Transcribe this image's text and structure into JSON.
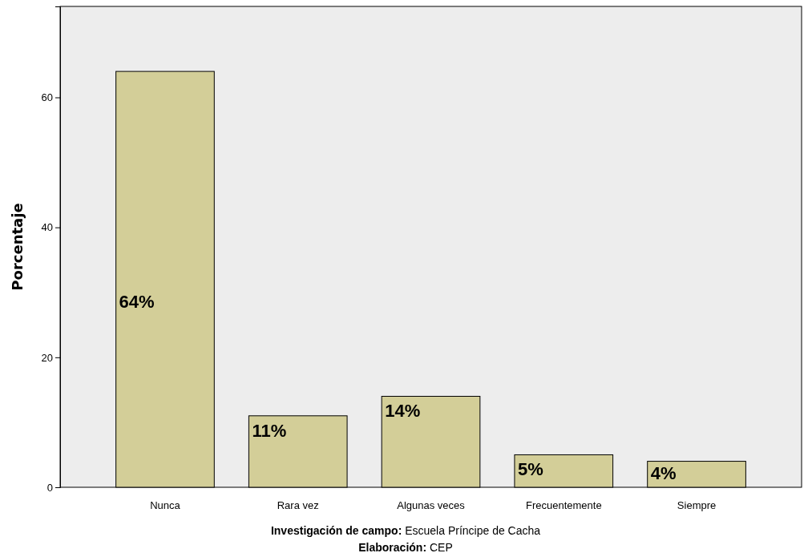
{
  "chart_data": {
    "type": "bar",
    "ylabel": "Porcentaje",
    "categories": [
      "Nunca",
      "Rara vez",
      "Algunas veces",
      "Frecuentemente",
      "Siempre"
    ],
    "values": [
      64,
      11,
      14,
      5,
      4
    ],
    "value_labels": [
      "64%",
      "11%",
      "14%",
      "5%",
      "4%"
    ],
    "color": "#d3ce98",
    "ylim": [
      0,
      74
    ],
    "yticks": [
      0,
      20,
      40,
      60
    ],
    "grid": false,
    "annotations": [
      "Investigación de campo: Escuela Príncipe de Cacha",
      "Elaboración: CEP"
    ]
  }
}
